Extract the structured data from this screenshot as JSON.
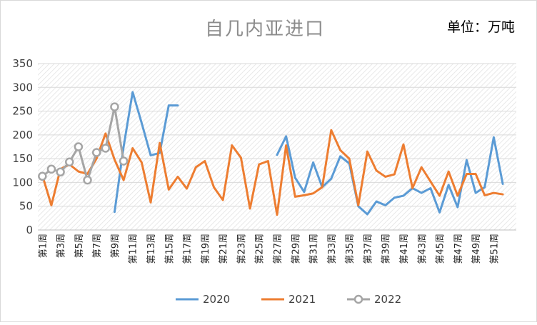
{
  "chart_data": {
    "type": "line",
    "title": "自几内亚进口",
    "unit_label": "单位：万吨",
    "ylim": [
      0,
      350
    ],
    "yticks": [
      0,
      50,
      100,
      150,
      200,
      250,
      300,
      350
    ],
    "x_tick_labels": [
      "第1周",
      "第3周",
      "第5周",
      "第7周",
      "第9周",
      "第11周",
      "第13周",
      "第15周",
      "第17周",
      "第19周",
      "第21周",
      "第23周",
      "第25周",
      "第27周",
      "第29周",
      "第31周",
      "第33周",
      "第35周",
      "第37周",
      "第39周",
      "第41周",
      "第43周",
      "第45周",
      "第47周",
      "第49周",
      "第51周"
    ],
    "x_count": 53,
    "grid": true,
    "legend_position": "bottom",
    "series": [
      {
        "name": "2020",
        "color": "#5b9bd5",
        "marker": "none",
        "values": [
          null,
          null,
          null,
          null,
          null,
          null,
          null,
          null,
          38,
          175,
          290,
          225,
          157,
          162,
          262,
          262,
          null,
          null,
          null,
          null,
          null,
          null,
          null,
          null,
          null,
          null,
          158,
          197,
          110,
          80,
          142,
          90,
          108,
          155,
          140,
          50,
          33,
          60,
          52,
          68,
          72,
          88,
          78,
          88,
          37,
          95,
          48,
          147,
          78,
          90,
          195,
          97,
          null
        ]
      },
      {
        "name": "2021",
        "color": "#ed7d31",
        "marker": "none",
        "values": [
          115,
          52,
          128,
          138,
          123,
          118,
          150,
          203,
          148,
          105,
          172,
          142,
          58,
          183,
          85,
          112,
          87,
          132,
          145,
          90,
          63,
          178,
          152,
          45,
          138,
          145,
          32,
          178,
          70,
          73,
          77,
          90,
          210,
          168,
          150,
          52,
          165,
          125,
          112,
          117,
          180,
          88,
          132,
          102,
          72,
          123,
          72,
          118,
          118,
          73,
          78,
          75,
          null
        ]
      },
      {
        "name": "2022",
        "color": "#a5a5a5",
        "marker": "circle",
        "values": [
          113,
          128,
          122,
          143,
          175,
          105,
          163,
          172,
          259,
          145,
          null,
          null,
          null,
          null,
          null,
          null,
          null,
          null,
          null,
          null,
          null,
          null,
          null,
          null,
          null,
          null,
          null,
          null,
          null,
          null,
          null,
          null,
          null,
          null,
          null,
          null,
          null,
          null,
          null,
          null,
          null,
          null,
          null,
          null,
          null,
          null,
          null,
          null,
          null,
          null,
          null,
          null,
          null
        ]
      }
    ]
  }
}
